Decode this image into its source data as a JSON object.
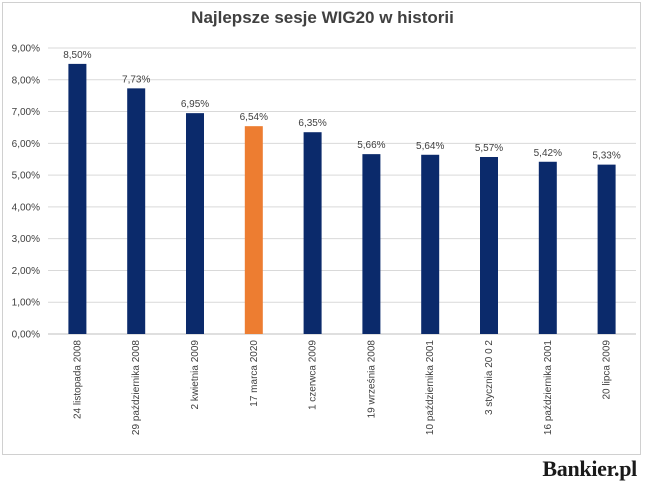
{
  "brand": "Bankier.pl",
  "chart_data": {
    "type": "bar",
    "title": "Najlepsze sesje WIG20 w historii",
    "xlabel": "",
    "ylabel": "",
    "ylim": [
      0,
      9
    ],
    "ytick_step": 1,
    "ytick_format": "percent_2dec_comma",
    "grid": true,
    "legend": "none",
    "categories": [
      "24 listopada 2008",
      "29 października 2008",
      "2 kwietnia 2009",
      "17 marca 2020",
      "1 czerwca 2009",
      "19 września 2008",
      "10 października 2001",
      "3 stycznia 20 0 2",
      "16 października 2001",
      "20 lipca 2009"
    ],
    "values": [
      8.5,
      7.73,
      6.95,
      6.54,
      6.35,
      5.66,
      5.64,
      5.57,
      5.42,
      5.33
    ],
    "data_labels": [
      "8,50%",
      "7,73%",
      "6,95%",
      "6,54%",
      "6,35%",
      "5,66%",
      "5,64%",
      "5,57%",
      "5,42%",
      "5,33%"
    ],
    "bar_colors": [
      "#0b2a6b",
      "#0b2a6b",
      "#0b2a6b",
      "#ed7d31",
      "#0b2a6b",
      "#0b2a6b",
      "#0b2a6b",
      "#0b2a6b",
      "#0b2a6b",
      "#0b2a6b"
    ],
    "grid_color": "#d9d9d9",
    "text_color": "#404040"
  }
}
